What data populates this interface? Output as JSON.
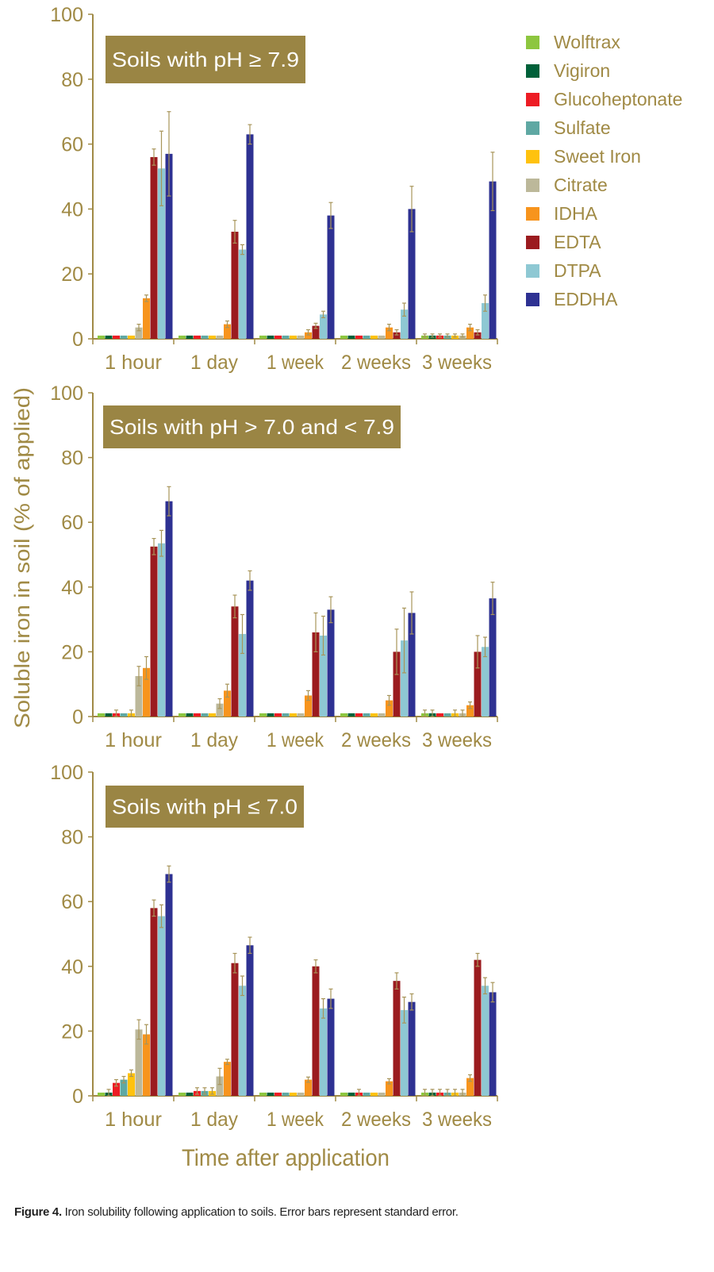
{
  "chart_data": {
    "type": "bar",
    "ylabel": "Soluble iron in soil (% of applied)",
    "xlabel": "Time after application",
    "ylim": [
      0,
      100
    ],
    "yticks": [
      0,
      20,
      40,
      60,
      80,
      100
    ],
    "categories": [
      "1 hour",
      "1 day",
      "1 week",
      "2 weeks",
      "3 weeks"
    ],
    "legend": {
      "placement": "top-right"
    },
    "series_names": [
      "Wolftrax",
      "Vigiron",
      "Glucoheptonate",
      "Sulfate",
      "Sweet Iron",
      "Citrate",
      "IDHA",
      "EDTA",
      "DTPA",
      "EDDHA"
    ],
    "series_colors": [
      "#8dc63f",
      "#00613a",
      "#ed1c24",
      "#5fa8a3",
      "#ffc20e",
      "#bcb89a",
      "#f7941d",
      "#9b1b1f",
      "#8ec8d3",
      "#2e3192"
    ],
    "panels": [
      {
        "title": "Soils with pH ≥ 7.9",
        "values": [
          [
            1,
            1,
            1,
            1,
            1,
            3.5,
            12.5,
            56,
            52.5,
            57
          ],
          [
            1,
            1,
            1,
            1,
            1,
            1,
            4.5,
            33,
            27.5,
            63
          ],
          [
            1,
            1,
            1,
            1,
            1,
            1,
            2,
            4,
            7.5,
            38
          ],
          [
            1,
            1,
            1,
            1,
            1,
            1,
            3.5,
            2,
            9,
            40
          ],
          [
            1,
            1,
            1,
            1,
            1,
            1,
            3.5,
            2,
            11,
            48.5
          ]
        ],
        "errors": [
          [
            0,
            0,
            0,
            0,
            0,
            1,
            1,
            2.5,
            11.5,
            13
          ],
          [
            0,
            0,
            0,
            0,
            0,
            0,
            1,
            3.5,
            1.5,
            3
          ],
          [
            0,
            0,
            0,
            0,
            0,
            0,
            0.8,
            0.8,
            1,
            4
          ],
          [
            0,
            0,
            0,
            0,
            0,
            0,
            1,
            0.8,
            2,
            7
          ],
          [
            0.5,
            0.5,
            0.5,
            0.5,
            0.5,
            0.5,
            1,
            0.8,
            2.5,
            9
          ]
        ]
      },
      {
        "title": "Soils with pH > 7.0 and < 7.9",
        "values": [
          [
            1,
            1,
            1,
            1,
            1,
            12.5,
            15,
            52.5,
            53.5,
            66.5
          ],
          [
            1,
            1,
            1,
            1,
            1,
            4,
            8,
            34,
            25.5,
            42
          ],
          [
            1,
            1,
            1,
            1,
            1,
            1,
            6.5,
            26,
            25,
            33
          ],
          [
            1,
            1,
            1,
            1,
            1,
            1,
            5,
            20,
            23.5,
            32
          ],
          [
            1,
            1,
            1,
            1,
            1,
            1,
            3.5,
            20,
            21.5,
            36.5
          ]
        ],
        "errors": [
          [
            0,
            0,
            1,
            0,
            1,
            3,
            3.5,
            2.5,
            4,
            4.5
          ],
          [
            0,
            0,
            0,
            0,
            0,
            1.5,
            2,
            3.5,
            6,
            3
          ],
          [
            0,
            0,
            0,
            0,
            0,
            0,
            1.5,
            6,
            6,
            4
          ],
          [
            0,
            0,
            0,
            0,
            0,
            0,
            1.5,
            7,
            10,
            6.5
          ],
          [
            1,
            1,
            0,
            0,
            1,
            1,
            1,
            5,
            3,
            5
          ]
        ]
      },
      {
        "title": "Soils with pH ≤ 7.0",
        "values": [
          [
            1,
            1,
            4,
            5,
            7,
            20.5,
            19,
            58,
            55.5,
            68.5
          ],
          [
            1,
            1,
            1.5,
            1.5,
            1.5,
            6,
            10.5,
            41,
            34,
            46.5
          ],
          [
            1,
            1,
            1,
            1,
            1,
            1,
            5,
            40,
            27,
            30
          ],
          [
            1,
            1,
            1,
            1,
            1,
            1,
            4.5,
            35.5,
            26.5,
            29
          ],
          [
            1,
            1,
            1,
            1,
            1,
            1,
            5.5,
            42,
            34,
            32
          ]
        ],
        "errors": [
          [
            0,
            1,
            1,
            1,
            1,
            3,
            3,
            2.5,
            3.5,
            2.5
          ],
          [
            0,
            0,
            1,
            1,
            1,
            2.5,
            0.8,
            3,
            3,
            2.5
          ],
          [
            0,
            0,
            0,
            0,
            0,
            0,
            0.8,
            2,
            3,
            3
          ],
          [
            0,
            0,
            1,
            0,
            0,
            0,
            0.8,
            2.5,
            4,
            2.5
          ],
          [
            1,
            1,
            1,
            1,
            1,
            1,
            1,
            2,
            2.5,
            3
          ]
        ]
      }
    ]
  },
  "caption": {
    "label": "Figure 4.",
    "text": " Iron solubility following application to soils. Error bars represent standard error."
  }
}
